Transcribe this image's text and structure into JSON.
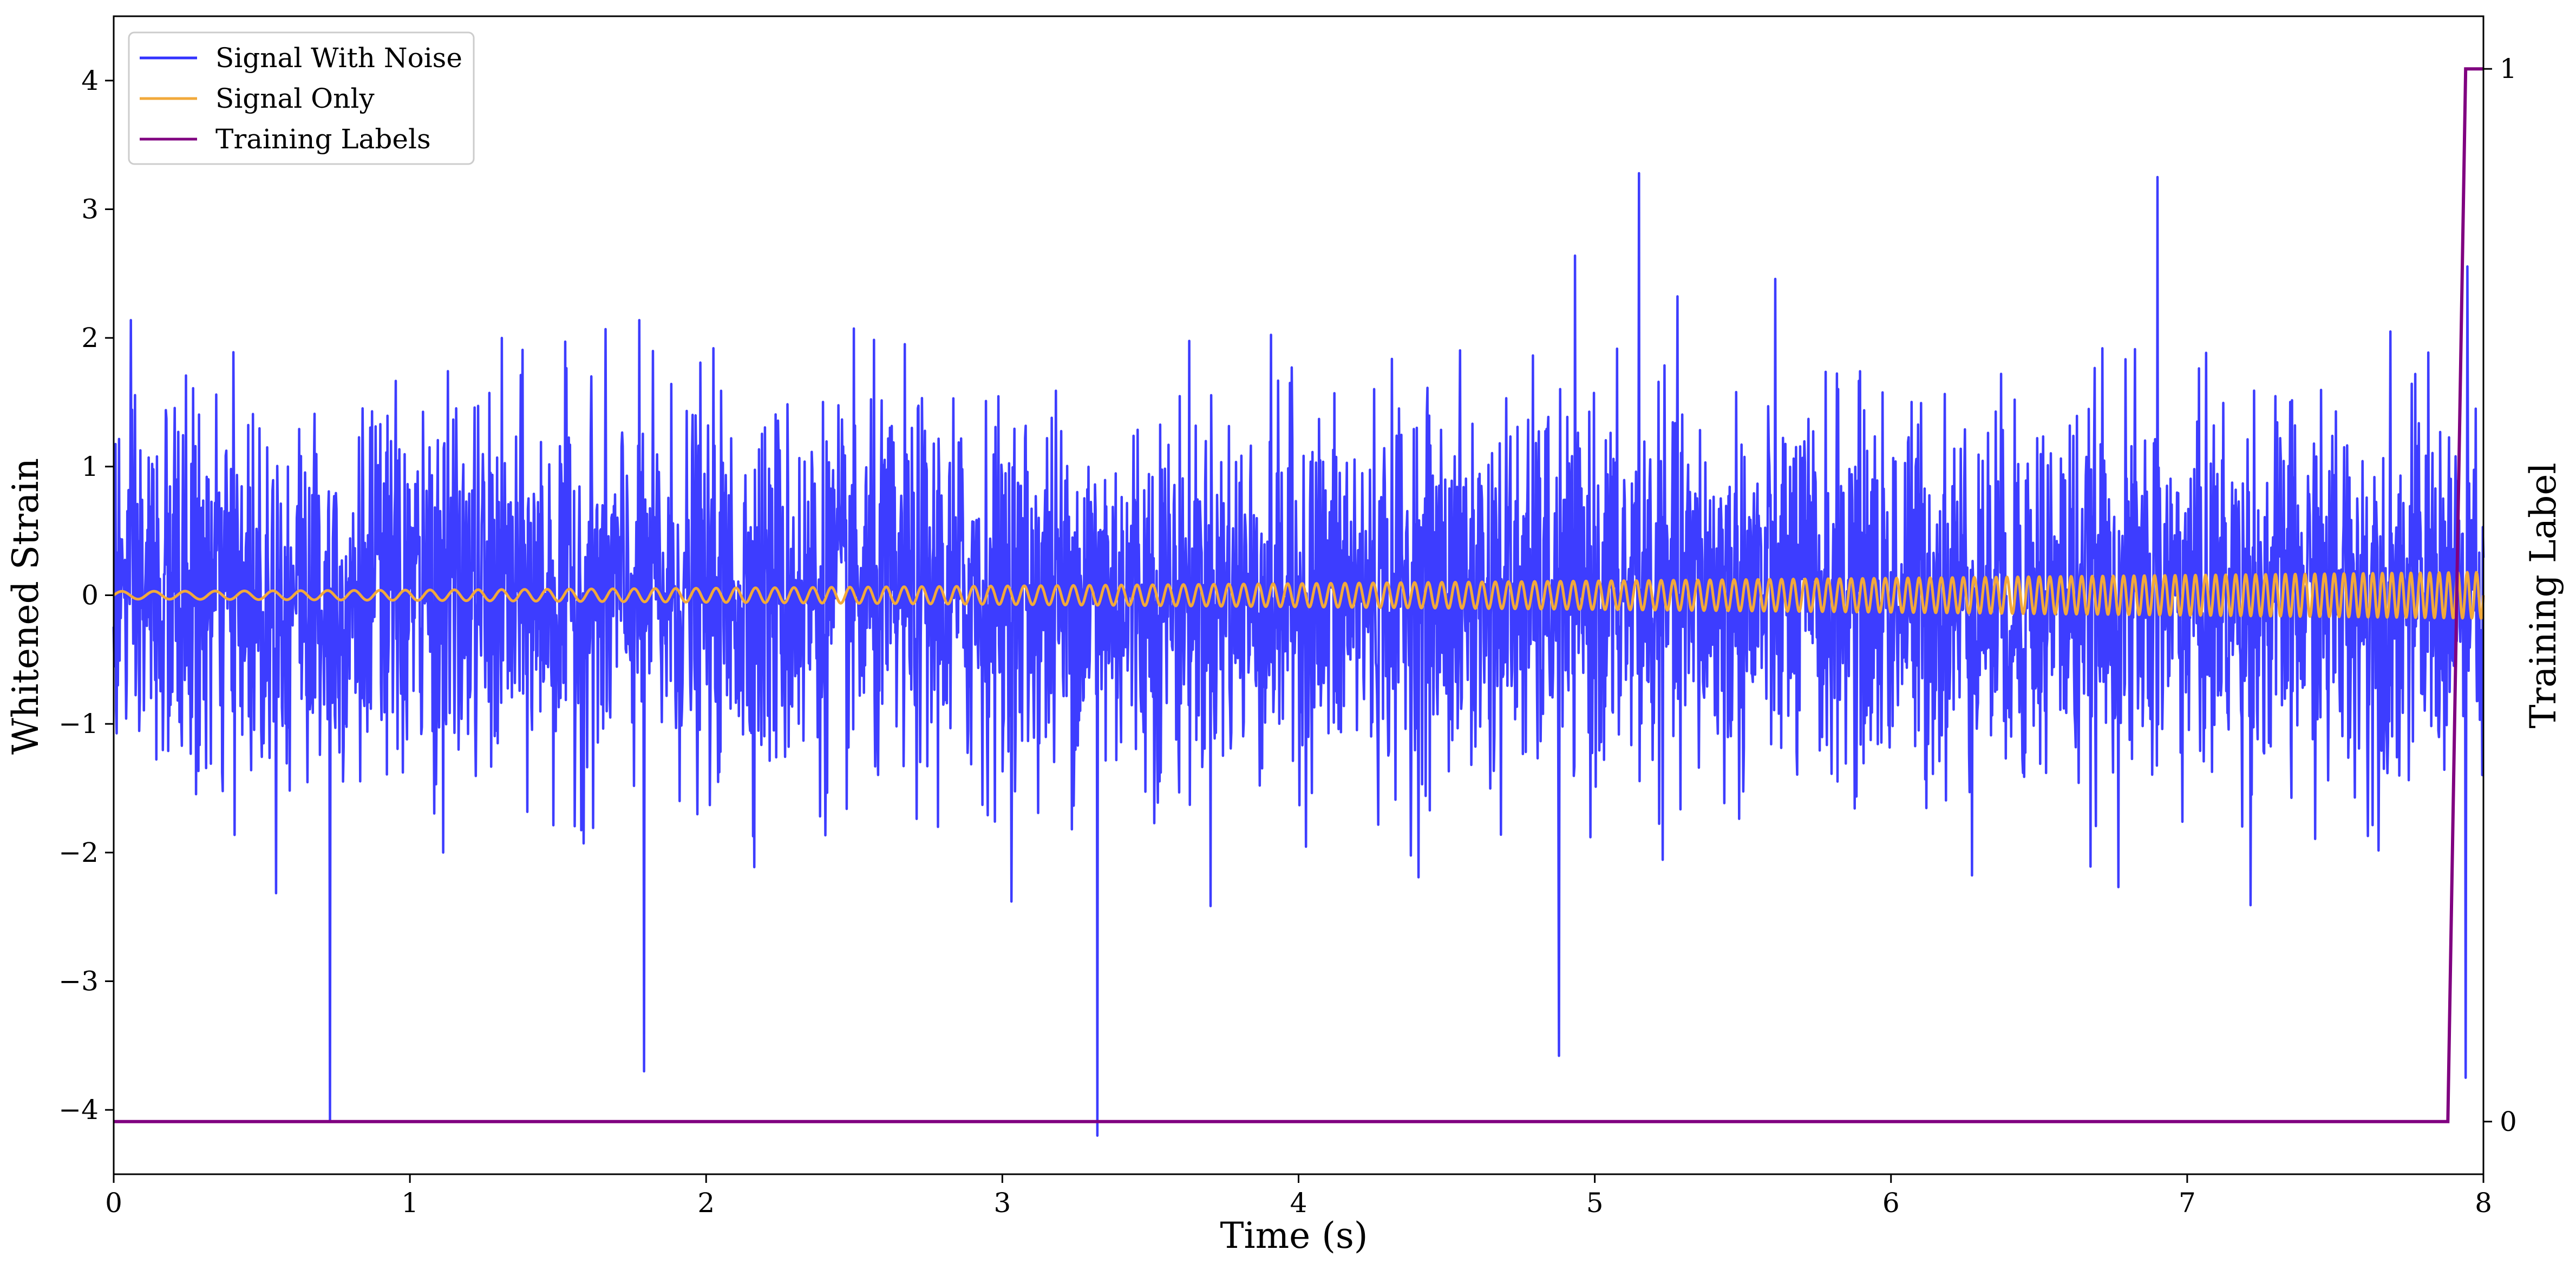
{
  "chart_data": {
    "type": "line",
    "x_label": "Time (s)",
    "y_label": "Whitened Strain",
    "y2_label": "Training Label",
    "xlim": [
      0,
      8
    ],
    "ylim": [
      -4.5,
      4.5
    ],
    "y2lim": [
      -0.05,
      1.05
    ],
    "x_ticks": [
      0,
      1,
      2,
      3,
      4,
      5,
      6,
      7,
      8
    ],
    "x_tick_labels": [
      "0",
      "1",
      "2",
      "3",
      "4",
      "5",
      "6",
      "7",
      "8"
    ],
    "y_ticks": [
      -4,
      -3,
      -2,
      -1,
      0,
      1,
      2,
      3,
      4
    ],
    "y_tick_labels": [
      "−4",
      "−3",
      "−2",
      "−1",
      "0",
      "1",
      "2",
      "3",
      "4"
    ],
    "y2_ticks": [
      0,
      1
    ],
    "y2_tick_labels": [
      "0",
      "1"
    ],
    "grid": false,
    "legend_position": "top-left",
    "series": [
      {
        "name": "Signal With Noise",
        "color": "#3333ff",
        "axis": "left",
        "description": "noise, std about 0.7, peaks about ±3.3",
        "sample_count": 4000,
        "notable_points": [
          [
            0.73,
            -4.08
          ],
          [
            3.32,
            -4.2
          ],
          [
            5.15,
            3.28
          ],
          [
            6.9,
            3.25
          ],
          [
            4.88,
            -3.58
          ],
          [
            1.79,
            -3.7
          ],
          [
            7.94,
            -3.75
          ]
        ]
      },
      {
        "name": "Signal Only",
        "color": "#f2a93b",
        "axis": "left",
        "description": "sinusoid; frequency rises from about 9 Hz to about 32 Hz, amplitude from 0.03 to 0.18",
        "freq_start_hz": 9,
        "freq_end_hz": 32,
        "amp_start": 0.03,
        "amp_end": 0.18
      },
      {
        "name": "Training Labels",
        "color": "#800080",
        "axis": "right",
        "points": [
          [
            0,
            0
          ],
          [
            7.88,
            0
          ],
          [
            7.94,
            1
          ],
          [
            8.0,
            1
          ]
        ]
      }
    ]
  }
}
